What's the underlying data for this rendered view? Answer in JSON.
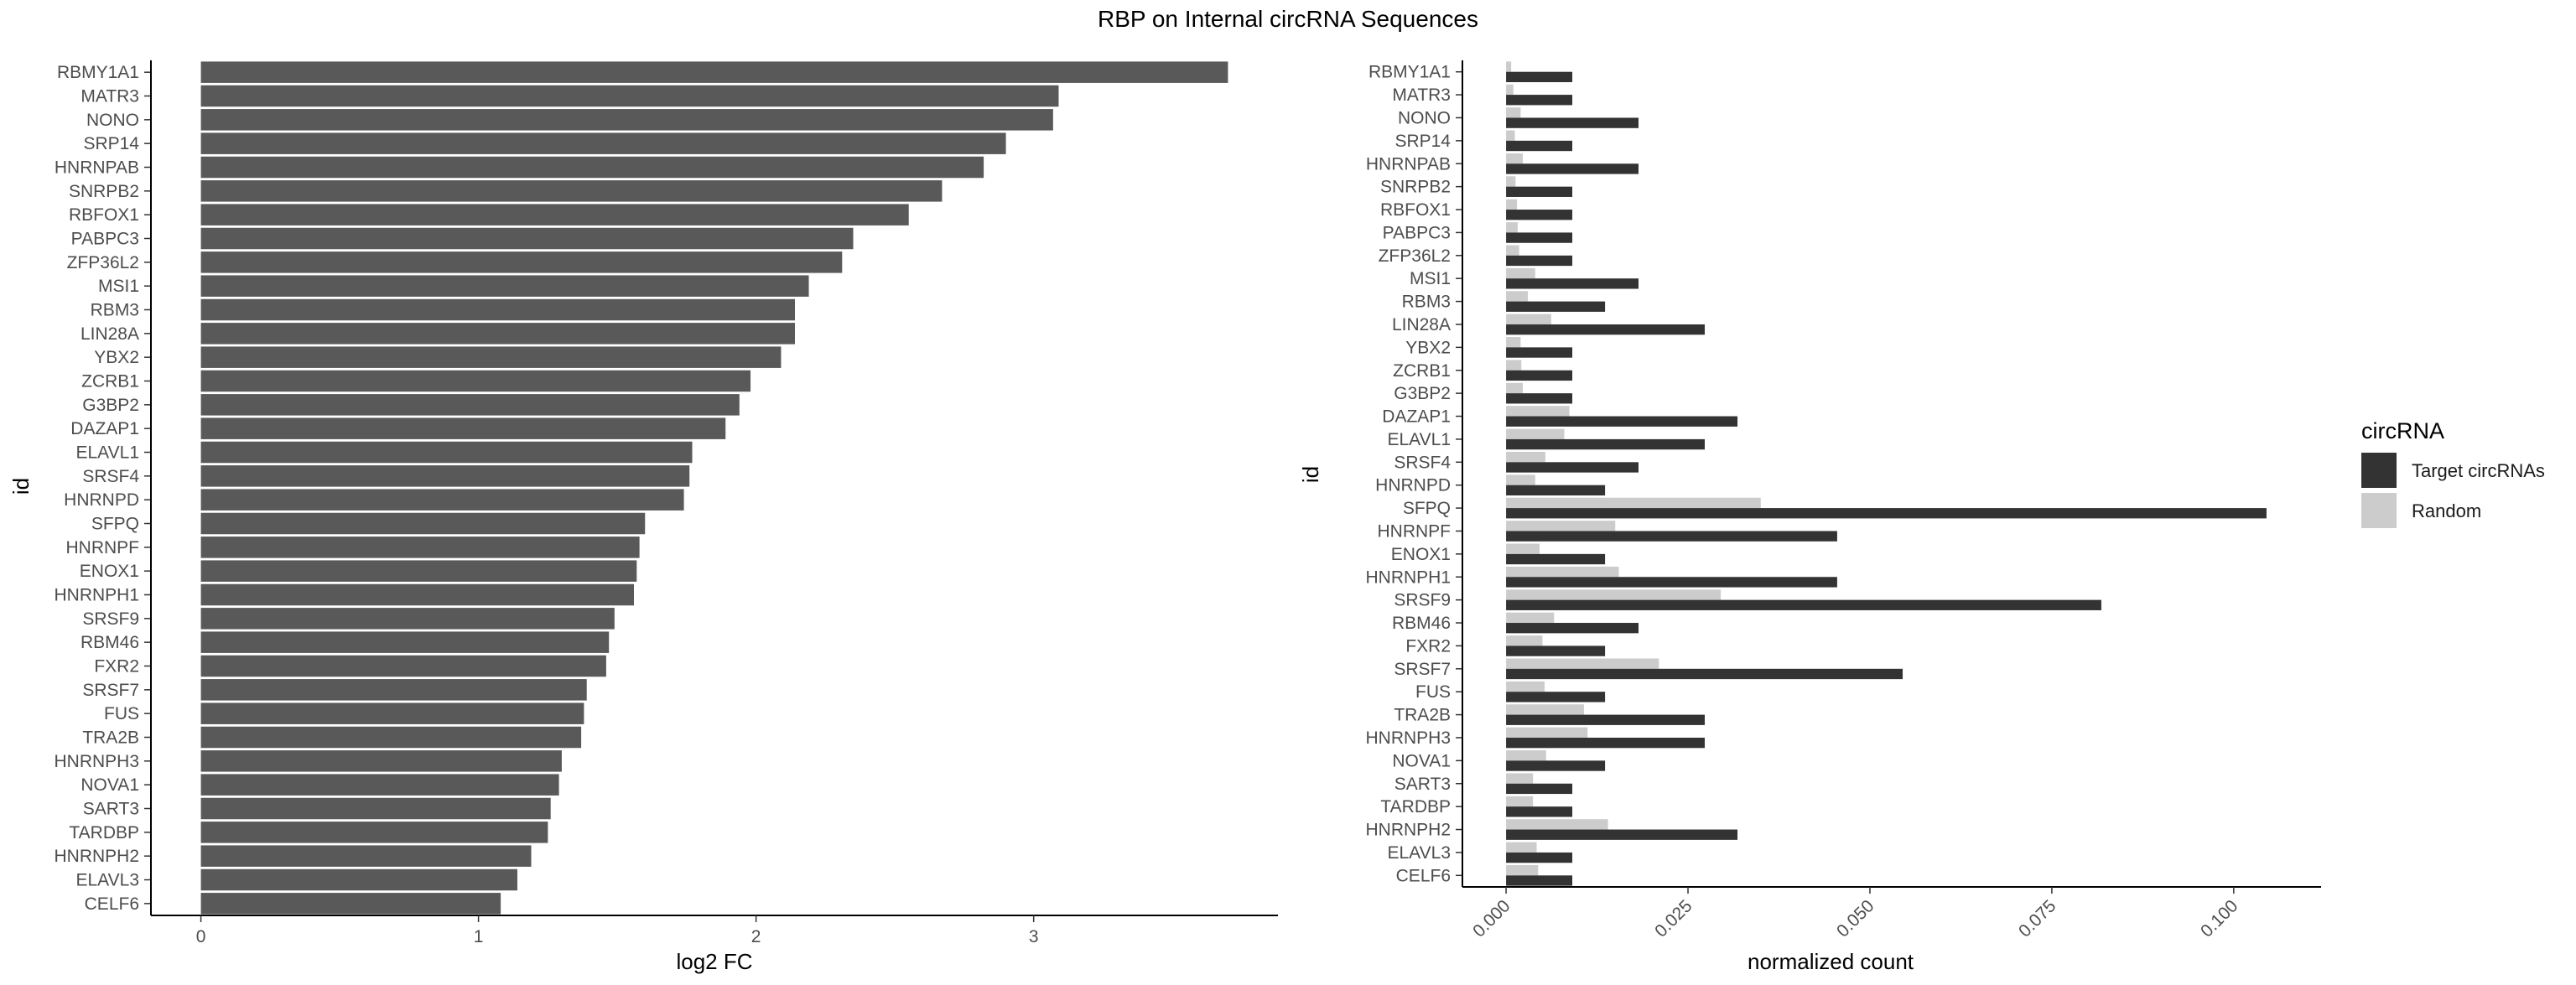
{
  "title": "RBP on Internal circRNA Sequences",
  "chart_data": [
    {
      "type": "bar",
      "orientation": "horizontal",
      "xlabel": "log2 FC",
      "ylabel": "id",
      "xlim": [
        -0.18,
        3.88
      ],
      "xticks": [
        0,
        1,
        2,
        3
      ],
      "xtick_labels": [
        "0",
        "1",
        "2",
        "3"
      ],
      "grid": false,
      "bar_color": "#595959",
      "categories": [
        "RBMY1A1",
        "MATR3",
        "NONO",
        "SRP14",
        "HNRNPAB",
        "SNRPB2",
        "RBFOX1",
        "PABPC3",
        "ZFP36L2",
        "MSI1",
        "RBM3",
        "LIN28A",
        "YBX2",
        "ZCRB1",
        "G3BP2",
        "DAZAP1",
        "ELAVL1",
        "SRSF4",
        "HNRNPD",
        "SFPQ",
        "HNRNPF",
        "ENOX1",
        "HNRNPH1",
        "SRSF9",
        "RBM46",
        "FXR2",
        "SRSF7",
        "FUS",
        "TRA2B",
        "HNRNPH3",
        "NOVA1",
        "SART3",
        "TARDBP",
        "HNRNPH2",
        "ELAVL3",
        "CELF6"
      ],
      "values": [
        3.7,
        3.09,
        3.07,
        2.9,
        2.82,
        2.67,
        2.55,
        2.35,
        2.31,
        2.19,
        2.14,
        2.14,
        2.09,
        1.98,
        1.94,
        1.89,
        1.77,
        1.76,
        1.74,
        1.6,
        1.58,
        1.57,
        1.56,
        1.49,
        1.47,
        1.46,
        1.39,
        1.38,
        1.37,
        1.3,
        1.29,
        1.26,
        1.25,
        1.19,
        1.14,
        1.08
      ]
    },
    {
      "type": "bar",
      "orientation": "horizontal",
      "grouped": true,
      "xlabel": "normalized count",
      "ylabel": "id",
      "xlim": [
        -0.006,
        0.112
      ],
      "xticks": [
        0.0,
        0.025,
        0.05,
        0.075,
        0.1
      ],
      "xtick_labels": [
        "0.000",
        "0.025",
        "0.050",
        "0.075",
        "0.100"
      ],
      "grid": false,
      "legend": {
        "title": "circRNA",
        "position": "right"
      },
      "categories": [
        "RBMY1A1",
        "MATR3",
        "NONO",
        "SRP14",
        "HNRNPAB",
        "SNRPB2",
        "RBFOX1",
        "PABPC3",
        "ZFP36L2",
        "MSI1",
        "RBM3",
        "LIN28A",
        "YBX2",
        "ZCRB1",
        "G3BP2",
        "DAZAP1",
        "ELAVL1",
        "SRSF4",
        "HNRNPD",
        "SFPQ",
        "HNRNPF",
        "ENOX1",
        "HNRNPH1",
        "SRSF9",
        "RBM46",
        "FXR2",
        "SRSF7",
        "FUS",
        "TRA2B",
        "HNRNPH3",
        "NOVA1",
        "SART3",
        "TARDBP",
        "HNRNPH2",
        "ELAVL3",
        "CELF6"
      ],
      "series": [
        {
          "name": "Target circRNAs",
          "color": "#333333",
          "values": [
            0.0091,
            0.0091,
            0.0182,
            0.0091,
            0.0182,
            0.0091,
            0.0091,
            0.0091,
            0.0091,
            0.0182,
            0.0136,
            0.0273,
            0.0091,
            0.0091,
            0.0091,
            0.0318,
            0.0273,
            0.0182,
            0.0136,
            0.1045,
            0.0455,
            0.0136,
            0.0455,
            0.0818,
            0.0182,
            0.0136,
            0.0545,
            0.0136,
            0.0273,
            0.0273,
            0.0136,
            0.0091,
            0.0091,
            0.0318,
            0.0091,
            0.0091
          ]
        },
        {
          "name": "Random",
          "color": "#cccccc",
          "values": [
            0.0007,
            0.001,
            0.002,
            0.0012,
            0.0023,
            0.0013,
            0.0015,
            0.0016,
            0.0018,
            0.004,
            0.003,
            0.0062,
            0.002,
            0.0021,
            0.0023,
            0.0087,
            0.008,
            0.0054,
            0.004,
            0.035,
            0.015,
            0.0046,
            0.0155,
            0.0295,
            0.0066,
            0.005,
            0.021,
            0.0053,
            0.0107,
            0.0112,
            0.0055,
            0.0037,
            0.0037,
            0.014,
            0.0042,
            0.0044
          ]
        }
      ]
    }
  ]
}
